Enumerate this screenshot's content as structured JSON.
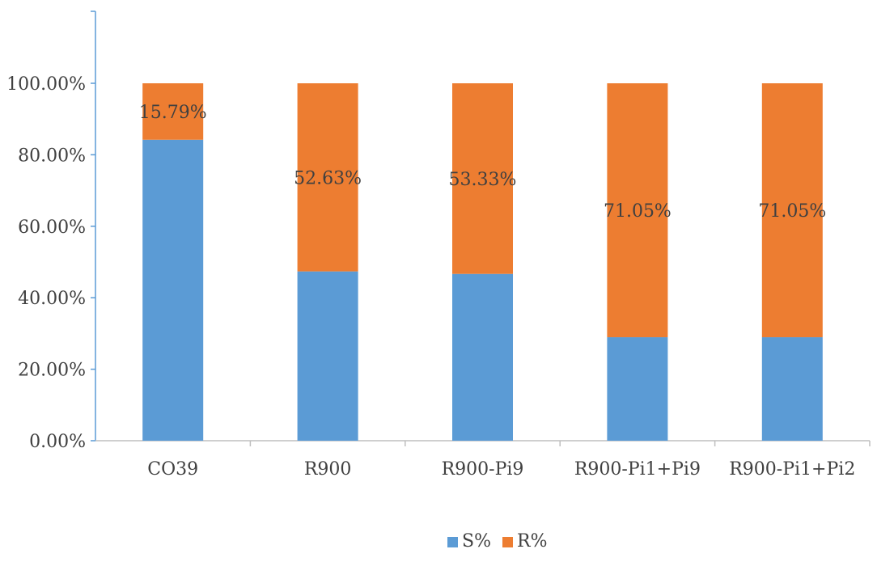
{
  "chart_data": {
    "type": "bar",
    "stacked": true,
    "categories": [
      "CO39",
      "R900",
      "R900-Pi9",
      "R900-Pi1+Pi9",
      "R900-Pi1+Pi2"
    ],
    "series": [
      {
        "name": "S%",
        "color": "#5B9BD5",
        "values": [
          84.21,
          47.37,
          46.67,
          28.95,
          28.95
        ]
      },
      {
        "name": "R%",
        "color": "#ED7D31",
        "values": [
          15.79,
          52.63,
          53.33,
          71.05,
          71.05
        ],
        "labels": [
          "15.79%",
          "52.63%",
          "53.33%",
          "71.05%",
          "71.05%"
        ]
      }
    ],
    "y_ticks": [
      "0.00%",
      "20.00%",
      "40.00%",
      "60.00%",
      "80.00%",
      "100.00%"
    ],
    "ylim": [
      0,
      100
    ],
    "legend": "bottom-center",
    "grid": false,
    "title": "",
    "xlabel": "",
    "ylabel": ""
  }
}
